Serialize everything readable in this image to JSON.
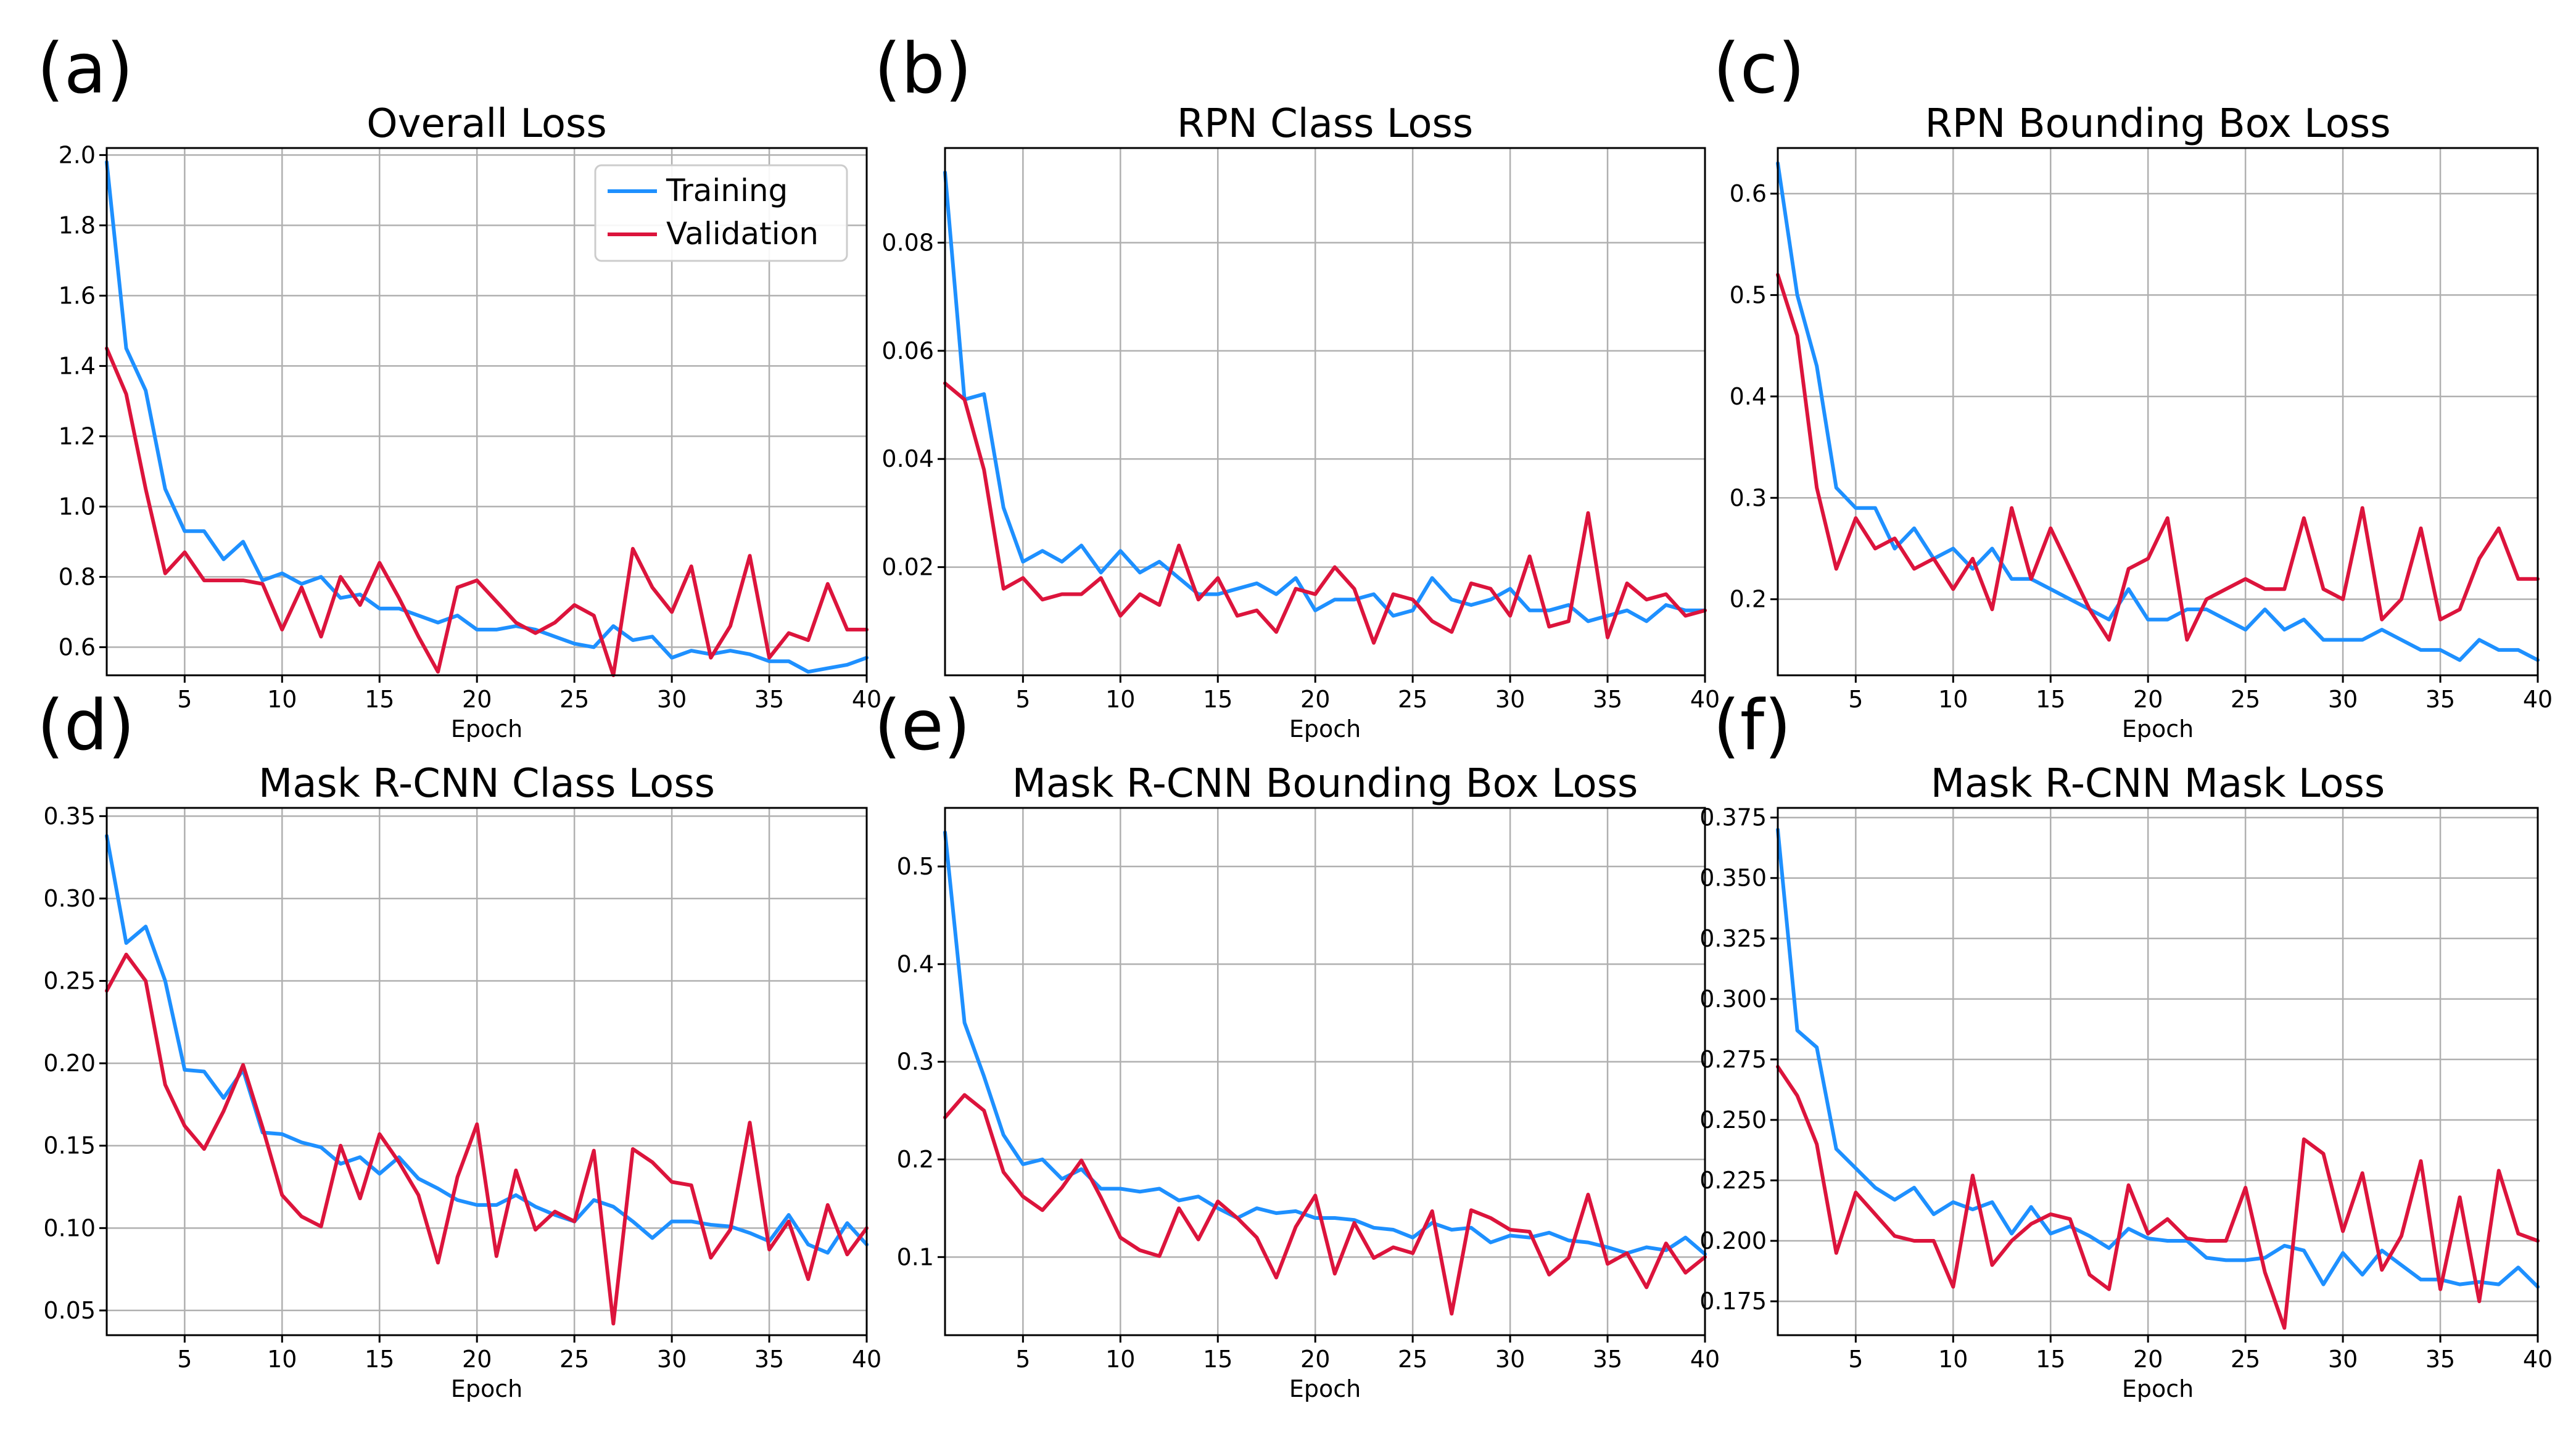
{
  "colors": {
    "training": "#1E90FF",
    "validation": "#DC143C"
  },
  "legend": {
    "training": "Training",
    "validation": "Validation"
  },
  "chart_data": [
    {
      "letter": "(a)",
      "type": "line",
      "title": "Overall Loss",
      "xlabel": "Epoch",
      "ylabel": "",
      "xlim": [
        1,
        40
      ],
      "ylim": [
        0.52,
        2.02
      ],
      "xticks": [
        5,
        10,
        15,
        20,
        25,
        30,
        35,
        40
      ],
      "yticks": [
        0.6,
        0.8,
        1.0,
        1.2,
        1.4,
        1.6,
        1.8,
        2.0
      ],
      "ytick_decimals": 1,
      "legend_position": "top-right",
      "x": [
        1,
        2,
        3,
        4,
        5,
        6,
        7,
        8,
        9,
        10,
        11,
        12,
        13,
        14,
        15,
        16,
        17,
        18,
        19,
        20,
        21,
        22,
        23,
        24,
        25,
        26,
        27,
        28,
        29,
        30,
        31,
        32,
        33,
        34,
        35,
        36,
        37,
        38,
        39,
        40
      ],
      "series": [
        {
          "name": "Training",
          "values": [
            1.98,
            1.45,
            1.33,
            1.05,
            0.93,
            0.93,
            0.85,
            0.9,
            0.79,
            0.81,
            0.78,
            0.8,
            0.74,
            0.75,
            0.71,
            0.71,
            0.69,
            0.67,
            0.69,
            0.65,
            0.65,
            0.66,
            0.65,
            0.63,
            0.61,
            0.6,
            0.66,
            0.62,
            0.63,
            0.57,
            0.59,
            0.58,
            0.59,
            0.58,
            0.56,
            0.56,
            0.53,
            0.54,
            0.55,
            0.57
          ]
        },
        {
          "name": "Validation",
          "values": [
            1.45,
            1.32,
            1.05,
            0.81,
            0.87,
            0.79,
            0.79,
            0.79,
            0.78,
            0.65,
            0.77,
            0.63,
            0.8,
            0.72,
            0.84,
            0.74,
            0.63,
            0.53,
            0.77,
            0.79,
            0.73,
            0.67,
            0.64,
            0.67,
            0.72,
            0.69,
            0.52,
            0.88,
            0.77,
            0.7,
            0.83,
            0.57,
            0.66,
            0.86,
            0.57,
            0.64,
            0.62,
            0.78,
            0.65,
            0.65
          ]
        }
      ]
    },
    {
      "letter": "(b)",
      "type": "line",
      "title": "RPN Class Loss",
      "xlabel": "Epoch",
      "ylabel": "",
      "xlim": [
        1,
        40
      ],
      "ylim": [
        0.0,
        0.0975
      ],
      "xticks": [
        5,
        10,
        15,
        20,
        25,
        30,
        35,
        40
      ],
      "yticks": [
        0.02,
        0.04,
        0.06,
        0.08
      ],
      "ytick_decimals": 2,
      "x": [
        1,
        2,
        3,
        4,
        5,
        6,
        7,
        8,
        9,
        10,
        11,
        12,
        13,
        14,
        15,
        16,
        17,
        18,
        19,
        20,
        21,
        22,
        23,
        24,
        25,
        26,
        27,
        28,
        29,
        30,
        31,
        32,
        33,
        34,
        35,
        36,
        37,
        38,
        39,
        40
      ],
      "series": [
        {
          "name": "Training",
          "values": [
            0.093,
            0.051,
            0.052,
            0.031,
            0.021,
            0.023,
            0.021,
            0.024,
            0.019,
            0.023,
            0.019,
            0.021,
            0.018,
            0.015,
            0.015,
            0.016,
            0.017,
            0.015,
            0.018,
            0.012,
            0.014,
            0.014,
            0.015,
            0.011,
            0.012,
            0.018,
            0.014,
            0.013,
            0.014,
            0.016,
            0.012,
            0.012,
            0.013,
            0.01,
            0.011,
            0.012,
            0.01,
            0.013,
            0.012,
            0.012
          ]
        },
        {
          "name": "Validation",
          "values": [
            0.054,
            0.051,
            0.038,
            0.016,
            0.018,
            0.014,
            0.015,
            0.015,
            0.018,
            0.011,
            0.015,
            0.013,
            0.024,
            0.014,
            0.018,
            0.011,
            0.012,
            0.008,
            0.016,
            0.015,
            0.02,
            0.016,
            0.006,
            0.015,
            0.014,
            0.01,
            0.008,
            0.017,
            0.016,
            0.011,
            0.022,
            0.009,
            0.01,
            0.03,
            0.007,
            0.017,
            0.014,
            0.015,
            0.011,
            0.012
          ]
        }
      ]
    },
    {
      "letter": "(c)",
      "type": "line",
      "title": "RPN Bounding Box Loss",
      "xlabel": "Epoch",
      "ylabel": "",
      "xlim": [
        1,
        40
      ],
      "ylim": [
        0.125,
        0.645
      ],
      "xticks": [
        5,
        10,
        15,
        20,
        25,
        30,
        35,
        40
      ],
      "yticks": [
        0.2,
        0.3,
        0.4,
        0.5,
        0.6
      ],
      "ytick_decimals": 1,
      "x": [
        1,
        2,
        3,
        4,
        5,
        6,
        7,
        8,
        9,
        10,
        11,
        12,
        13,
        14,
        15,
        16,
        17,
        18,
        19,
        20,
        21,
        22,
        23,
        24,
        25,
        26,
        27,
        28,
        29,
        30,
        31,
        32,
        33,
        34,
        35,
        36,
        37,
        38,
        39,
        40
      ],
      "series": [
        {
          "name": "Training",
          "values": [
            0.63,
            0.5,
            0.43,
            0.31,
            0.29,
            0.29,
            0.25,
            0.27,
            0.24,
            0.25,
            0.23,
            0.25,
            0.22,
            0.22,
            0.21,
            0.2,
            0.19,
            0.18,
            0.21,
            0.18,
            0.18,
            0.19,
            0.19,
            0.18,
            0.17,
            0.19,
            0.17,
            0.18,
            0.16,
            0.16,
            0.16,
            0.17,
            0.16,
            0.15,
            0.15,
            0.14,
            0.16,
            0.15,
            0.15,
            0.14
          ]
        },
        {
          "name": "Validation",
          "values": [
            0.52,
            0.46,
            0.31,
            0.23,
            0.28,
            0.25,
            0.26,
            0.23,
            0.24,
            0.21,
            0.24,
            0.19,
            0.29,
            0.22,
            0.27,
            0.23,
            0.19,
            0.16,
            0.23,
            0.24,
            0.28,
            0.16,
            0.2,
            0.21,
            0.22,
            0.21,
            0.21,
            0.28,
            0.21,
            0.2,
            0.29,
            0.18,
            0.2,
            0.27,
            0.18,
            0.19,
            0.24,
            0.27,
            0.22,
            0.22
          ]
        }
      ]
    },
    {
      "letter": "(d)",
      "type": "line",
      "title": "Mask R-CNN Class Loss",
      "xlabel": "Epoch",
      "ylabel": "",
      "xlim": [
        1,
        40
      ],
      "ylim": [
        0.035,
        0.355
      ],
      "xticks": [
        5,
        10,
        15,
        20,
        25,
        30,
        35,
        40
      ],
      "yticks": [
        0.05,
        0.1,
        0.15,
        0.2,
        0.25,
        0.3,
        0.35
      ],
      "ytick_decimals": 2,
      "x": [
        1,
        2,
        3,
        4,
        5,
        6,
        7,
        8,
        9,
        10,
        11,
        12,
        13,
        14,
        15,
        16,
        17,
        18,
        19,
        20,
        21,
        22,
        23,
        24,
        25,
        26,
        27,
        28,
        29,
        30,
        31,
        32,
        33,
        34,
        35,
        36,
        37,
        38,
        39,
        40
      ],
      "series": [
        {
          "name": "Training",
          "values": [
            0.338,
            0.273,
            0.283,
            0.25,
            0.196,
            0.195,
            0.179,
            0.196,
            0.158,
            0.157,
            0.152,
            0.149,
            0.139,
            0.143,
            0.133,
            0.143,
            0.13,
            0.124,
            0.117,
            0.114,
            0.114,
            0.12,
            0.113,
            0.108,
            0.104,
            0.117,
            0.113,
            0.104,
            0.094,
            0.104,
            0.104,
            0.102,
            0.101,
            0.097,
            0.092,
            0.108,
            0.09,
            0.085,
            0.103,
            0.09
          ]
        },
        {
          "name": "Validation",
          "values": [
            0.244,
            0.266,
            0.25,
            0.187,
            0.162,
            0.148,
            0.171,
            0.199,
            0.161,
            0.12,
            0.107,
            0.101,
            0.15,
            0.118,
            0.157,
            0.14,
            0.12,
            0.079,
            0.131,
            0.163,
            0.083,
            0.135,
            0.099,
            0.11,
            0.104,
            0.147,
            0.042,
            0.148,
            0.14,
            0.128,
            0.126,
            0.082,
            0.099,
            0.164,
            0.087,
            0.104,
            0.069,
            0.114,
            0.084,
            0.1
          ]
        }
      ]
    },
    {
      "letter": "(e)",
      "type": "line",
      "title": "Mask R-CNN Bounding Box Loss",
      "xlabel": "Epoch",
      "ylabel": "",
      "xlim": [
        1,
        40
      ],
      "ylim": [
        0.02,
        0.56
      ],
      "xticks": [
        5,
        10,
        15,
        20,
        25,
        30,
        35,
        40
      ],
      "yticks": [
        0.1,
        0.2,
        0.3,
        0.4,
        0.5
      ],
      "ytick_decimals": 1,
      "x": [
        1,
        2,
        3,
        4,
        5,
        6,
        7,
        8,
        9,
        10,
        11,
        12,
        13,
        14,
        15,
        16,
        17,
        18,
        19,
        20,
        21,
        22,
        23,
        24,
        25,
        26,
        27,
        28,
        29,
        30,
        31,
        32,
        33,
        34,
        35,
        36,
        37,
        38,
        39,
        40
      ],
      "series": [
        {
          "name": "Training",
          "values": [
            0.535,
            0.34,
            0.285,
            0.225,
            0.195,
            0.2,
            0.18,
            0.19,
            0.17,
            0.17,
            0.167,
            0.17,
            0.158,
            0.162,
            0.15,
            0.14,
            0.15,
            0.145,
            0.147,
            0.14,
            0.14,
            0.138,
            0.13,
            0.128,
            0.12,
            0.135,
            0.128,
            0.13,
            0.115,
            0.122,
            0.12,
            0.125,
            0.117,
            0.115,
            0.11,
            0.104,
            0.11,
            0.107,
            0.12,
            0.103
          ]
        },
        {
          "name": "Validation",
          "values": [
            0.243,
            0.266,
            0.25,
            0.187,
            0.162,
            0.148,
            0.171,
            0.199,
            0.161,
            0.12,
            0.107,
            0.101,
            0.15,
            0.118,
            0.157,
            0.14,
            0.12,
            0.079,
            0.131,
            0.163,
            0.083,
            0.135,
            0.099,
            0.11,
            0.104,
            0.147,
            0.042,
            0.148,
            0.14,
            0.128,
            0.126,
            0.082,
            0.099,
            0.164,
            0.093,
            0.104,
            0.069,
            0.114,
            0.084,
            0.1
          ]
        }
      ]
    },
    {
      "letter": "(f)",
      "type": "line",
      "title": "Mask R-CNN Mask Loss",
      "xlabel": "Epoch",
      "ylabel": "",
      "xlim": [
        1,
        40
      ],
      "ylim": [
        0.161,
        0.379
      ],
      "xticks": [
        5,
        10,
        15,
        20,
        25,
        30,
        35,
        40
      ],
      "yticks": [
        0.175,
        0.2,
        0.225,
        0.25,
        0.275,
        0.3,
        0.325,
        0.35,
        0.375
      ],
      "ytick_decimals": 3,
      "x": [
        1,
        2,
        3,
        4,
        5,
        6,
        7,
        8,
        9,
        10,
        11,
        12,
        13,
        14,
        15,
        16,
        17,
        18,
        19,
        20,
        21,
        22,
        23,
        24,
        25,
        26,
        27,
        28,
        29,
        30,
        31,
        32,
        33,
        34,
        35,
        36,
        37,
        38,
        39,
        40
      ],
      "series": [
        {
          "name": "Training",
          "values": [
            0.37,
            0.287,
            0.28,
            0.238,
            0.23,
            0.222,
            0.217,
            0.222,
            0.211,
            0.216,
            0.213,
            0.216,
            0.203,
            0.214,
            0.203,
            0.206,
            0.202,
            0.197,
            0.205,
            0.201,
            0.2,
            0.2,
            0.193,
            0.192,
            0.192,
            0.193,
            0.198,
            0.196,
            0.182,
            0.195,
            0.186,
            0.196,
            0.19,
            0.184,
            0.184,
            0.182,
            0.183,
            0.182,
            0.189,
            0.181
          ]
        },
        {
          "name": "Validation",
          "values": [
            0.272,
            0.26,
            0.24,
            0.195,
            0.22,
            0.211,
            0.202,
            0.2,
            0.2,
            0.181,
            0.227,
            0.19,
            0.2,
            0.207,
            0.211,
            0.209,
            0.186,
            0.18,
            0.223,
            0.203,
            0.209,
            0.201,
            0.2,
            0.2,
            0.222,
            0.187,
            0.164,
            0.242,
            0.236,
            0.204,
            0.228,
            0.188,
            0.202,
            0.233,
            0.18,
            0.218,
            0.175,
            0.229,
            0.203,
            0.2
          ]
        }
      ]
    }
  ]
}
